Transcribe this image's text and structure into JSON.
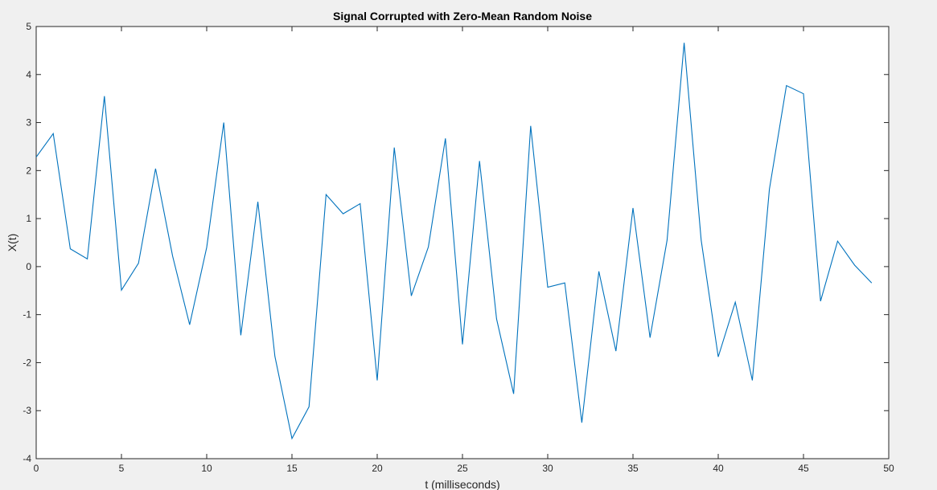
{
  "chart_data": {
    "type": "line",
    "title": "Signal Corrupted with Zero-Mean Random Noise",
    "xlabel": "t (milliseconds)",
    "ylabel": "X(t)",
    "xlim": [
      0,
      50
    ],
    "ylim": [
      -4,
      5
    ],
    "xticks": [
      0,
      5,
      10,
      15,
      20,
      25,
      30,
      35,
      40,
      45,
      50
    ],
    "yticks": [
      -4,
      -3,
      -2,
      -1,
      0,
      1,
      2,
      3,
      4,
      5
    ],
    "grid": false,
    "line_color": "#0072bd",
    "series": [
      {
        "x": [
          0,
          1,
          2,
          3,
          4,
          5,
          6,
          7,
          8,
          9,
          10,
          11,
          12,
          13,
          14,
          15,
          16,
          17,
          18,
          19,
          20,
          21,
          22,
          23,
          24,
          25,
          26,
          27,
          28,
          29,
          30,
          31,
          32,
          33,
          34,
          35,
          36,
          37,
          38,
          39,
          40,
          41,
          42,
          43,
          44,
          45,
          46,
          47,
          48,
          49
        ],
        "values": [
          2.28,
          2.77,
          0.37,
          0.16,
          3.55,
          -0.49,
          0.07,
          2.04,
          0.22,
          -1.21,
          0.4,
          3.0,
          -1.43,
          1.35,
          -1.87,
          -3.58,
          -2.92,
          1.5,
          1.1,
          1.31,
          -2.37,
          2.48,
          -0.61,
          0.41,
          2.67,
          -1.62,
          2.2,
          -1.09,
          -2.65,
          2.93,
          -0.43,
          -0.34,
          -3.25,
          -0.1,
          -1.76,
          1.22,
          -1.48,
          0.55,
          4.66,
          0.55,
          -1.88,
          -0.74,
          -2.37,
          1.61,
          3.77,
          3.6,
          -0.72,
          0.53,
          0.03,
          -0.34
        ]
      }
    ]
  }
}
